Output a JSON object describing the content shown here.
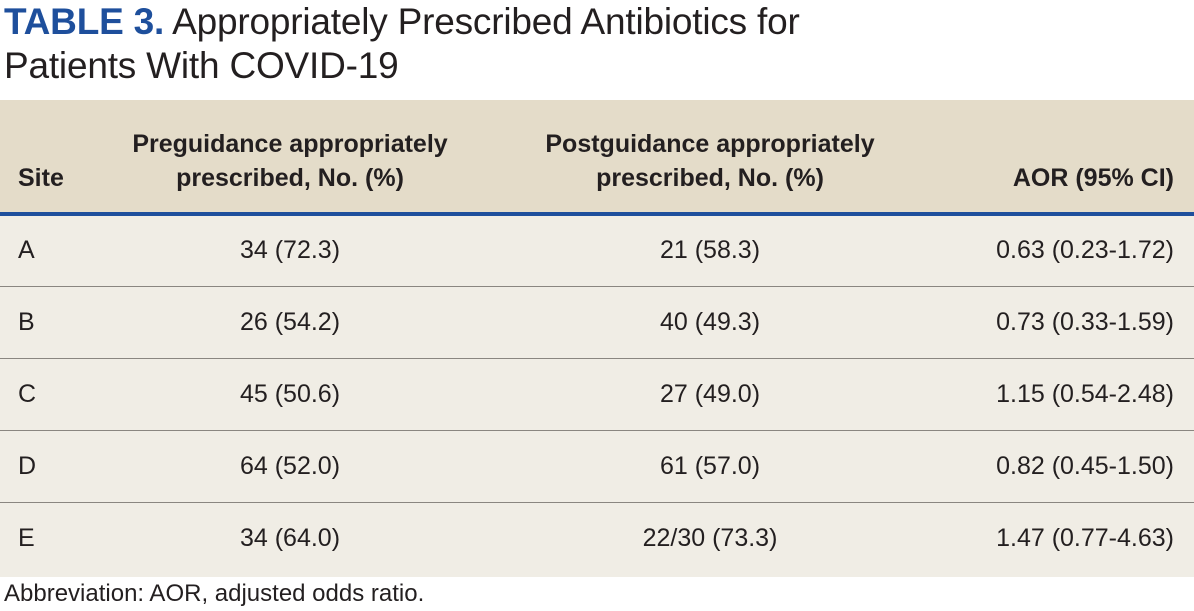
{
  "title": {
    "label": "TABLE 3.",
    "text": "Appropriately Prescribed Antibiotics for",
    "text_line2": "Patients With COVID-19"
  },
  "table": {
    "headers": {
      "site": "Site",
      "pre_line1": "Preguidance appropriately",
      "pre_line2": "prescribed, No. (%)",
      "post_line1": "Postguidance appropriately",
      "post_line2": "prescribed, No. (%)",
      "aor": "AOR (95% CI)"
    },
    "rows": [
      {
        "site": "A",
        "pre": "34 (72.3)",
        "post": "21 (58.3)",
        "aor": "0.63 (0.23-1.72)"
      },
      {
        "site": "B",
        "pre": "26 (54.2)",
        "post": "40 (49.3)",
        "aor": "0.73 (0.33-1.59)"
      },
      {
        "site": "C",
        "pre": "45 (50.6)",
        "post": "27 (49.0)",
        "aor": "1.15 (0.54-2.48)"
      },
      {
        "site": "D",
        "pre": "64 (52.0)",
        "post": "61 (57.0)",
        "aor": "0.82 (0.45-1.50)"
      },
      {
        "site": "E",
        "pre": "34 (64.0)",
        "post": "22/30 (73.3)",
        "aor": "1.47 (0.77-4.63)"
      }
    ]
  },
  "footnote": "Abbreviation: AOR, adjusted odds ratio.",
  "colors": {
    "accent": "#1e4f9c",
    "header_bg": "#e4dcc9",
    "body_bg": "#f0ede5"
  }
}
